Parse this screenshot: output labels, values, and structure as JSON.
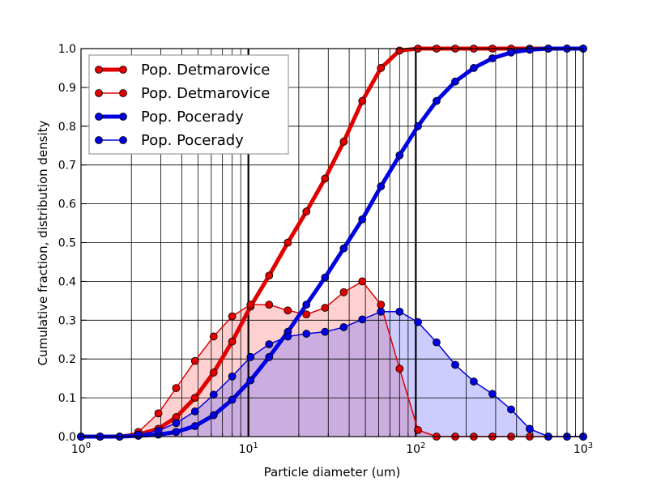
{
  "chart_data": {
    "type": "line",
    "x_scale": "log",
    "xlabel": "Particle diameter (um)",
    "ylabel": "Cumulative fraction, distribution density",
    "xlim": [
      1,
      1000
    ],
    "ylim": [
      0,
      1
    ],
    "x_ticks": [
      {
        "base": "10",
        "exp": "0",
        "value": 1
      },
      {
        "base": "10",
        "exp": "1",
        "value": 10
      },
      {
        "base": "10",
        "exp": "2",
        "value": 100
      },
      {
        "base": "10",
        "exp": "3",
        "value": 1000
      }
    ],
    "y_ticks": [
      "0.0",
      "0.1",
      "0.2",
      "0.3",
      "0.4",
      "0.5",
      "0.6",
      "0.7",
      "0.8",
      "0.9",
      "1.0"
    ],
    "legend_position": "upper-left",
    "series": [
      {
        "name": "Pop. Detmarovice",
        "kind": "cumulative",
        "color": "#e00000",
        "fill": null,
        "x": [
          1,
          1.3,
          1.7,
          2.2,
          2.9,
          3.7,
          4.8,
          6.2,
          8,
          10.3,
          13.3,
          17.2,
          22.2,
          28.7,
          37.1,
          47.9,
          61.9,
          80,
          103,
          133,
          172,
          222,
          287,
          371,
          479,
          619,
          800,
          1000
        ],
        "y": [
          0,
          0,
          0,
          0.005,
          0.02,
          0.05,
          0.1,
          0.165,
          0.245,
          0.335,
          0.415,
          0.5,
          0.58,
          0.665,
          0.76,
          0.865,
          0.95,
          0.995,
          1,
          1,
          1,
          1,
          1,
          1,
          1,
          1,
          1,
          1
        ]
      },
      {
        "name": "Pop. Detmarovice",
        "kind": "density",
        "color": "#e00000",
        "fill": "rgba(255,120,120,0.35)",
        "x": [
          1,
          1.3,
          1.7,
          2.2,
          2.9,
          3.7,
          4.8,
          6.2,
          8,
          10.3,
          13.3,
          17.2,
          22.2,
          28.7,
          37.1,
          47.9,
          61.9,
          80,
          103,
          133,
          172,
          222,
          287,
          371,
          479,
          619,
          800,
          1000
        ],
        "y": [
          0,
          0,
          0,
          0.012,
          0.06,
          0.125,
          0.195,
          0.258,
          0.31,
          0.34,
          0.34,
          0.325,
          0.315,
          0.332,
          0.372,
          0.4,
          0.34,
          0.175,
          0.017,
          0,
          0,
          0,
          0,
          0,
          0,
          0,
          0,
          0
        ]
      },
      {
        "name": "Pop. Pocerady",
        "kind": "cumulative",
        "color": "#0000e0",
        "fill": null,
        "x": [
          1,
          1.3,
          1.7,
          2.2,
          2.9,
          3.7,
          4.8,
          6.2,
          8,
          10.3,
          13.3,
          17.2,
          22.2,
          28.7,
          37.1,
          47.9,
          61.9,
          80,
          103,
          133,
          172,
          222,
          287,
          371,
          479,
          619,
          800,
          1000
        ],
        "y": [
          0,
          0,
          0,
          0.002,
          0.005,
          0.012,
          0.027,
          0.055,
          0.095,
          0.145,
          0.205,
          0.27,
          0.34,
          0.41,
          0.485,
          0.56,
          0.645,
          0.725,
          0.8,
          0.865,
          0.915,
          0.95,
          0.975,
          0.99,
          0.997,
          1,
          1,
          1
        ]
      },
      {
        "name": "Pop. Pocerady",
        "kind": "density",
        "color": "#0000e0",
        "fill": "rgba(110,110,255,0.35)",
        "x": [
          1,
          1.3,
          1.7,
          2.2,
          2.9,
          3.7,
          4.8,
          6.2,
          8,
          10.3,
          13.3,
          17.2,
          22.2,
          28.7,
          37.1,
          47.9,
          61.9,
          80,
          103,
          133,
          172,
          222,
          287,
          371,
          479,
          619,
          800,
          1000
        ],
        "y": [
          0,
          0,
          0,
          0.005,
          0.015,
          0.035,
          0.065,
          0.108,
          0.155,
          0.205,
          0.238,
          0.258,
          0.265,
          0.27,
          0.282,
          0.302,
          0.322,
          0.322,
          0.295,
          0.243,
          0.185,
          0.142,
          0.11,
          0.07,
          0.02,
          0,
          0,
          0
        ]
      }
    ]
  }
}
